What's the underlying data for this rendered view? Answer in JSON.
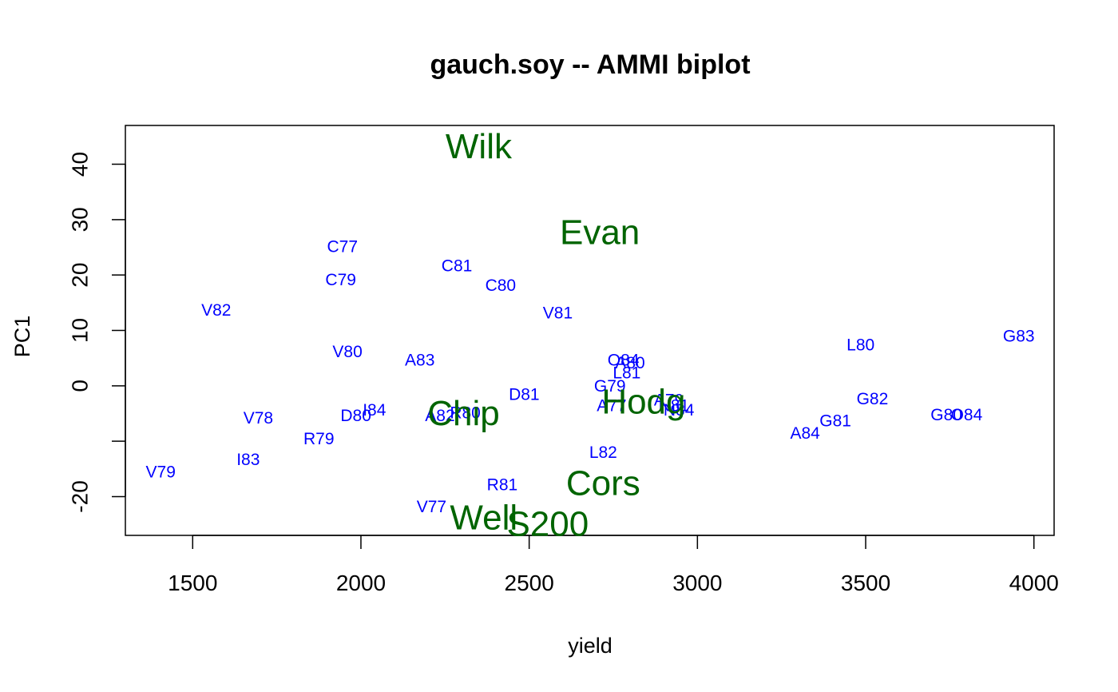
{
  "chart_data": {
    "type": "scatter",
    "title": "gauch.soy -- AMMI biplot",
    "xlabel": "yield",
    "ylabel": "PC1",
    "xlim": [
      1300,
      4060
    ],
    "ylim": [
      -27,
      47
    ],
    "xticks": [
      1500,
      2000,
      2500,
      3000,
      3500,
      4000
    ],
    "yticks": [
      -20,
      -10,
      0,
      10,
      20,
      30,
      40
    ],
    "ytick_labels": [
      "-20",
      "",
      "0",
      "10",
      "20",
      "30",
      "40"
    ],
    "grid": false,
    "series": [
      {
        "color": "#0000ff",
        "points": [
          {
            "label": "C77",
            "x": 1945,
            "y": 25.1
          },
          {
            "label": "C79",
            "x": 1940,
            "y": 19.1
          },
          {
            "label": "C81",
            "x": 2285,
            "y": 21.6
          },
          {
            "label": "C80",
            "x": 2415,
            "y": 18.1
          },
          {
            "label": "V82",
            "x": 1570,
            "y": 13.6
          },
          {
            "label": "V81",
            "x": 2585,
            "y": 13.1
          },
          {
            "label": "V80",
            "x": 1960,
            "y": 6.1
          },
          {
            "label": "A83",
            "x": 2175,
            "y": 4.6
          },
          {
            "label": "O84",
            "x": 2780,
            "y": 4.6
          },
          {
            "label": "A80",
            "x": 2800,
            "y": 4.1
          },
          {
            "label": "L81",
            "x": 2790,
            "y": 2.3
          },
          {
            "label": "G79",
            "x": 2740,
            "y": -0.1
          },
          {
            "label": "D81",
            "x": 2485,
            "y": -1.6
          },
          {
            "label": "A79",
            "x": 2915,
            "y": -2.6
          },
          {
            "label": "N81",
            "x": 2930,
            "y": -3.6
          },
          {
            "label": "N84",
            "x": 2945,
            "y": -4.4
          },
          {
            "label": "A77",
            "x": 2745,
            "y": -3.6
          },
          {
            "label": "I84",
            "x": 2040,
            "y": -4.4
          },
          {
            "label": "D80",
            "x": 1985,
            "y": -5.4
          },
          {
            "label": "A82",
            "x": 2235,
            "y": -5.4
          },
          {
            "label": "R80",
            "x": 2310,
            "y": -4.9
          },
          {
            "label": "V78",
            "x": 1695,
            "y": -5.9
          },
          {
            "label": "R79",
            "x": 1875,
            "y": -9.6
          },
          {
            "label": "I83",
            "x": 1665,
            "y": -13.4
          },
          {
            "label": "V79",
            "x": 1405,
            "y": -15.6
          },
          {
            "label": "L82",
            "x": 2720,
            "y": -12.1
          },
          {
            "label": "R81",
            "x": 2420,
            "y": -17.9
          },
          {
            "label": "V77",
            "x": 2210,
            "y": -21.9
          },
          {
            "label": "L80",
            "x": 3485,
            "y": 7.3
          },
          {
            "label": "G83",
            "x": 3955,
            "y": 8.9
          },
          {
            "label": "G82",
            "x": 3520,
            "y": -2.4
          },
          {
            "label": "G81",
            "x": 3410,
            "y": -6.4
          },
          {
            "label": "A84",
            "x": 3320,
            "y": -8.6
          },
          {
            "label": "G80",
            "x": 3740,
            "y": -5.3
          },
          {
            "label": "O84",
            "x": 3800,
            "y": -5.3
          }
        ]
      },
      {
        "color": "#006400",
        "points": [
          {
            "label": "Wilk",
            "x": 2350,
            "y": 43.2
          },
          {
            "label": "Evan",
            "x": 2710,
            "y": 27.7
          },
          {
            "label": "Hodg",
            "x": 2840,
            "y": -2.9
          },
          {
            "label": "Chip",
            "x": 2305,
            "y": -5.0
          },
          {
            "label": "Cors",
            "x": 2720,
            "y": -17.6
          },
          {
            "label": "Well",
            "x": 2365,
            "y": -23.8
          },
          {
            "label": "S200",
            "x": 2555,
            "y": -25.0
          }
        ]
      }
    ]
  }
}
